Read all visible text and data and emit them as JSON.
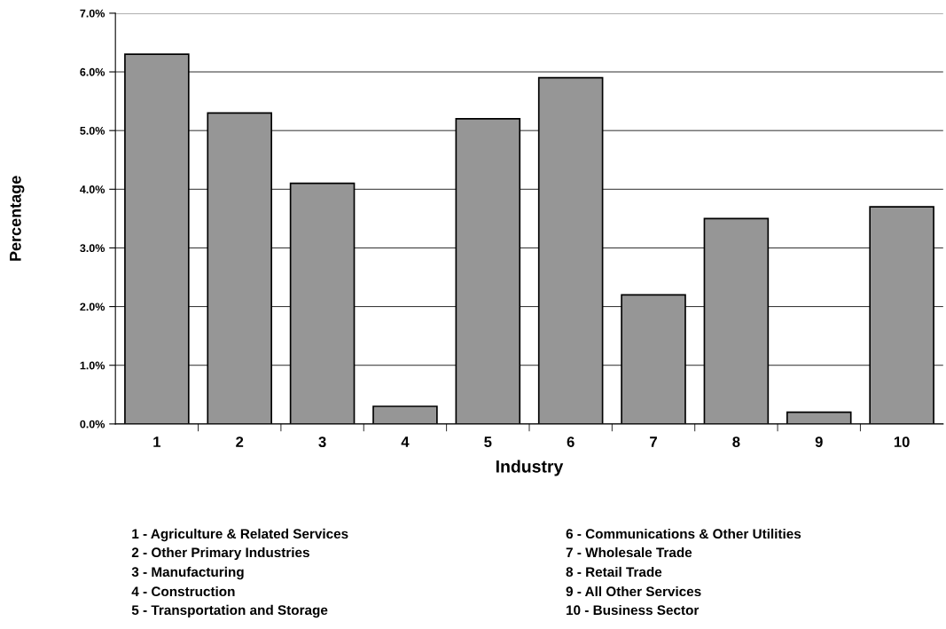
{
  "chart_data": {
    "type": "bar",
    "xlabel": "Industry",
    "ylabel": "Percentage",
    "categories": [
      "1",
      "2",
      "3",
      "4",
      "5",
      "6",
      "7",
      "8",
      "9",
      "10"
    ],
    "values": [
      6.3,
      5.3,
      4.1,
      0.3,
      5.2,
      5.9,
      2.2,
      3.5,
      0.2,
      3.7
    ],
    "color": "#969696",
    "ylim": [
      0,
      7
    ],
    "yticks": [
      {
        "value": 0,
        "label": "0.0%"
      },
      {
        "value": 1,
        "label": "1.0%"
      },
      {
        "value": 2,
        "label": "2.0%"
      },
      {
        "value": 3,
        "label": "3.0%"
      },
      {
        "value": 4,
        "label": "4.0%"
      },
      {
        "value": 5,
        "label": "5.0%"
      },
      {
        "value": 6,
        "label": "6.0%"
      },
      {
        "value": 7,
        "label": "7.0%"
      }
    ],
    "grid": "y",
    "legend": false,
    "annotations": [
      "1 - Agriculture & Related Services",
      "2 - Other Primary Industries",
      "3 - Manufacturing",
      "4 - Construction",
      "5 - Transportation and Storage",
      "6 - Communications & Other Utilities",
      "7 - Wholesale Trade",
      "8 - Retail Trade",
      "9 - All Other Services",
      "10 - Business Sector"
    ]
  }
}
